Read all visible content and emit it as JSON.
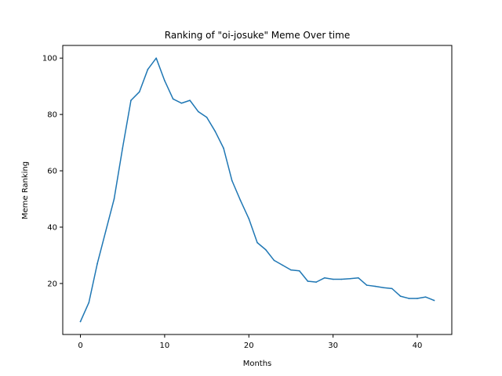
{
  "chart_data": {
    "type": "line",
    "title": "Ranking of \"oi-josuke\" Meme Over time",
    "xlabel": "Months",
    "ylabel": "Meme Ranking",
    "xlim": [
      -2.1,
      44.1
    ],
    "ylim": [
      1.9,
      104.5
    ],
    "x_ticks": [
      0,
      10,
      20,
      30,
      40
    ],
    "y_ticks": [
      20,
      40,
      60,
      80,
      100
    ],
    "grid": false,
    "legend": "none",
    "series": [
      {
        "color": "#1f77b4",
        "x": [
          0,
          1,
          2,
          3,
          4,
          5,
          6,
          7,
          8,
          9,
          10,
          11,
          12,
          13,
          14,
          15,
          16,
          17,
          18,
          19,
          20,
          21,
          22,
          23,
          24,
          25,
          26,
          27,
          28,
          29,
          30,
          31,
          32,
          33,
          34,
          35,
          36,
          37,
          38,
          39,
          40,
          41,
          42
        ],
        "values": [
          6.5,
          13.2,
          27,
          38.5,
          50,
          68,
          85,
          88,
          96,
          100,
          92,
          85.5,
          84,
          85,
          81,
          79,
          74,
          68,
          56.5,
          49.5,
          43,
          34.5,
          32,
          28.2,
          26.5,
          24.8,
          24.5,
          20.8,
          20.5,
          22,
          21.5,
          21.5,
          21.7,
          22,
          19.4,
          19,
          18.5,
          18.2,
          15.5,
          14.7,
          14.7,
          15.2,
          14
        ]
      }
    ]
  }
}
